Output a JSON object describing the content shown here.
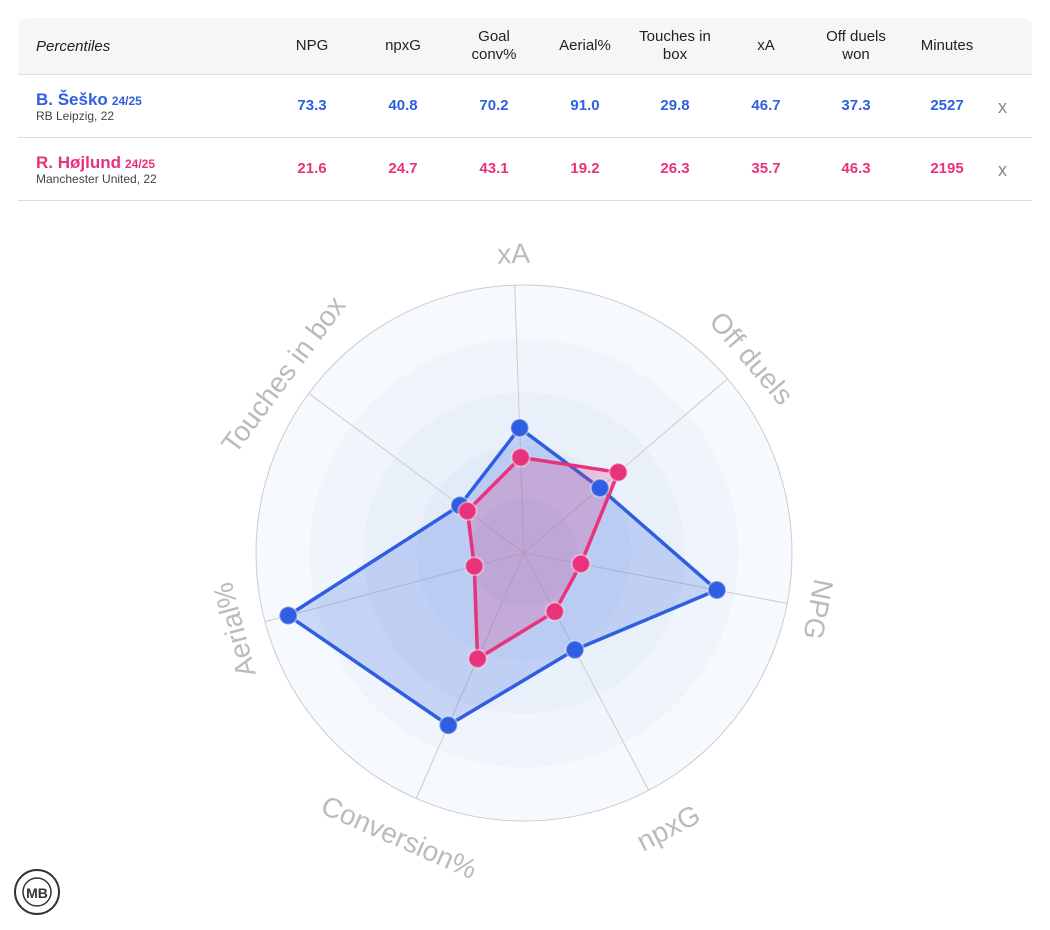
{
  "table": {
    "corner": "Percentiles",
    "columns": [
      "NPG",
      "npxG",
      "Goal conv%",
      "Aerial%",
      "Touches in box",
      "xA",
      "Off duels won",
      "Minutes"
    ],
    "rows": [
      {
        "season": "24/25",
        "club": "RB Leipzig, 22",
        "minutes": 2527,
        "remove": "x"
      },
      {
        "season": "24/25",
        "club": "Manchester United, 22",
        "minutes": 2195,
        "remove": "x"
      }
    ]
  },
  "chart_data": {
    "type": "radar",
    "categories": [
      "NPG",
      "npxG",
      "Conversion%",
      "Aerial%",
      "Touches in box",
      "xA",
      "Off duels"
    ],
    "rlim": [
      0,
      100
    ],
    "rticks": [
      20,
      40,
      60,
      80,
      100
    ],
    "series": [
      {
        "name": "B. Šeško",
        "color": "#2f5fe0",
        "values": [
          73.3,
          40.8,
          70.2,
          91.0,
          29.8,
          46.7,
          37.3
        ],
        "value_labels": [
          "73.3",
          "40.8",
          "70.2",
          "91.0",
          "29.8",
          "46.7",
          "37.3"
        ]
      },
      {
        "name": "R. Højlund",
        "color": "#e8327c",
        "values": [
          21.6,
          24.7,
          43.1,
          19.2,
          26.3,
          35.7,
          46.3
        ],
        "value_labels": [
          "21.6",
          "24.7",
          "43.1",
          "19.2",
          "26.3",
          "35.7",
          "46.3"
        ]
      }
    ]
  },
  "logo": "MB"
}
